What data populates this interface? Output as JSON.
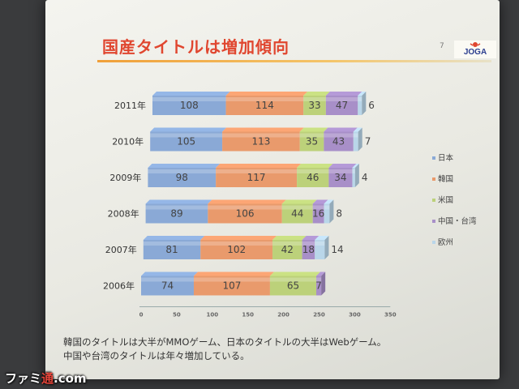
{
  "slide": {
    "title": "国産タイトルは増加傾向",
    "page_number": "7",
    "logo_text": "JOGA",
    "caption_lines": [
      "韓国のタイトルは大半がMMOゲーム、日本のタイトルの大半はWebゲーム。",
      "中国や台湾のタイトルは年々増加している。"
    ]
  },
  "watermark": {
    "prefix": "ファミ",
    "accent": "通",
    "suffix": ".com"
  },
  "colors": {
    "japan": "#8aa9d6",
    "korea": "#e99a6c",
    "usa": "#bcd17a",
    "china_taiwan": "#a88fc8",
    "europe": "#b9d6e9"
  },
  "chart_data": {
    "type": "bar",
    "orientation": "horizontal",
    "stacked": true,
    "categories": [
      "2011年",
      "2010年",
      "2009年",
      "2008年",
      "2007年",
      "2006年"
    ],
    "series": [
      {
        "name": "日本",
        "color": "#8aa9d6",
        "values": [
          108,
          105,
          98,
          89,
          81,
          74
        ]
      },
      {
        "name": "韓国",
        "color": "#e99a6c",
        "values": [
          114,
          113,
          117,
          106,
          102,
          107
        ]
      },
      {
        "name": "米国",
        "color": "#bcd17a",
        "values": [
          33,
          35,
          46,
          44,
          42,
          65
        ]
      },
      {
        "name": "中国・台湾",
        "color": "#a88fc8",
        "values": [
          47,
          43,
          34,
          16,
          18,
          7
        ]
      },
      {
        "name": "欧州",
        "color": "#b9d6e9",
        "values": [
          6,
          7,
          4,
          8,
          14,
          0
        ]
      }
    ],
    "data_labels": [
      [
        "108",
        "114",
        "33",
        "47",
        "6"
      ],
      [
        "105",
        "113",
        "35",
        "43",
        "7"
      ],
      [
        "98",
        "117",
        "46",
        "34",
        "4"
      ],
      [
        "89",
        "106",
        "44",
        "16",
        "8"
      ],
      [
        "81",
        "102",
        "42",
        "18",
        "14"
      ],
      [
        "74",
        "107",
        "65",
        "7",
        ""
      ]
    ],
    "xlim": [
      0,
      350
    ],
    "xticks": [
      "0",
      "50",
      "100",
      "150",
      "200",
      "250",
      "300",
      "350"
    ],
    "legend": {
      "position": "right",
      "entries": [
        "日本",
        "韓国",
        "米国",
        "中国・台湾",
        "欧州"
      ]
    },
    "grid": false
  }
}
